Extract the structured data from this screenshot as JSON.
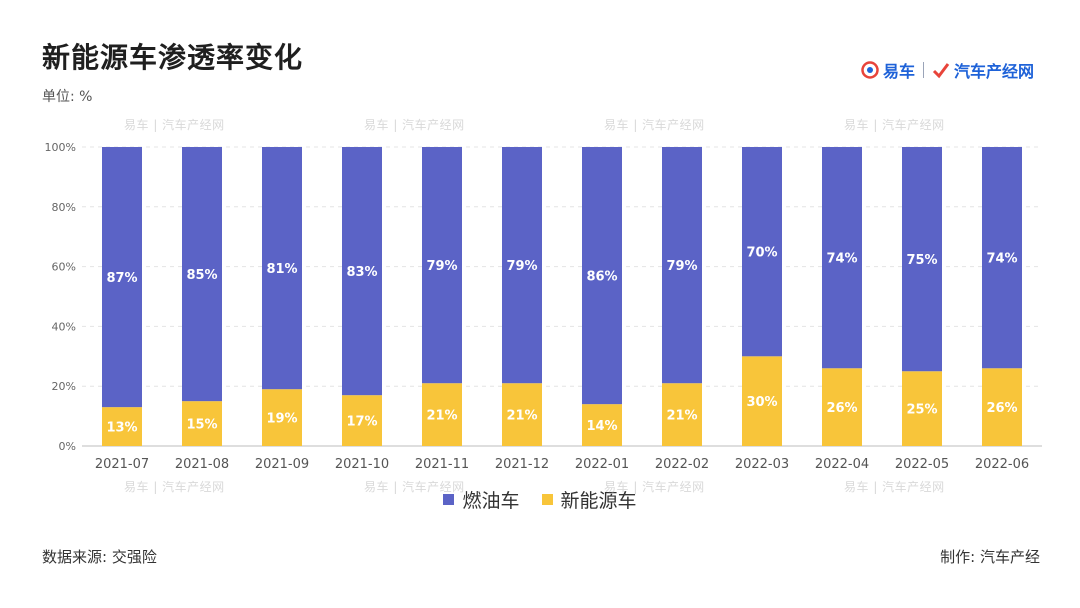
{
  "title": "新能源车渗透率变化",
  "unit_label": "单位: %",
  "brand": {
    "part1": "易车",
    "part2": "汽车产经网"
  },
  "source_label": "数据来源: 交强险",
  "maker_label": "制作: 汽车产经",
  "watermark_text": "易车 | 汽车产经网",
  "colors": {
    "fuel": "#5b63c6",
    "nev": "#f8c53a",
    "brand": "#1e62d8"
  },
  "chart_data": {
    "type": "bar",
    "stacked": true,
    "title": "新能源车渗透率变化",
    "ylabel": "",
    "xlabel": "",
    "ylim": [
      0,
      100
    ],
    "yticks": [
      "0%",
      "20%",
      "40%",
      "60%",
      "80%",
      "100%"
    ],
    "grid": true,
    "legend_position": "bottom",
    "categories": [
      "2021-07",
      "2021-08",
      "2021-09",
      "2021-10",
      "2021-11",
      "2021-12",
      "2022-01",
      "2022-02",
      "2022-03",
      "2022-04",
      "2022-05",
      "2022-06"
    ],
    "series": [
      {
        "name": "新能源车",
        "values": [
          13,
          15,
          19,
          17,
          21,
          21,
          14,
          21,
          30,
          26,
          25,
          26
        ],
        "labels": [
          "13%",
          "15%",
          "19%",
          "17%",
          "21%",
          "21%",
          "14%",
          "21%",
          "30%",
          "26%",
          "25%",
          "26%"
        ]
      },
      {
        "name": "燃油车",
        "values": [
          87,
          85,
          81,
          83,
          79,
          79,
          86,
          79,
          70,
          74,
          75,
          74
        ],
        "labels": [
          "87%",
          "85%",
          "81%",
          "83%",
          "79%",
          "79%",
          "86%",
          "79%",
          "70%",
          "74%",
          "75%",
          "74%"
        ]
      }
    ]
  }
}
